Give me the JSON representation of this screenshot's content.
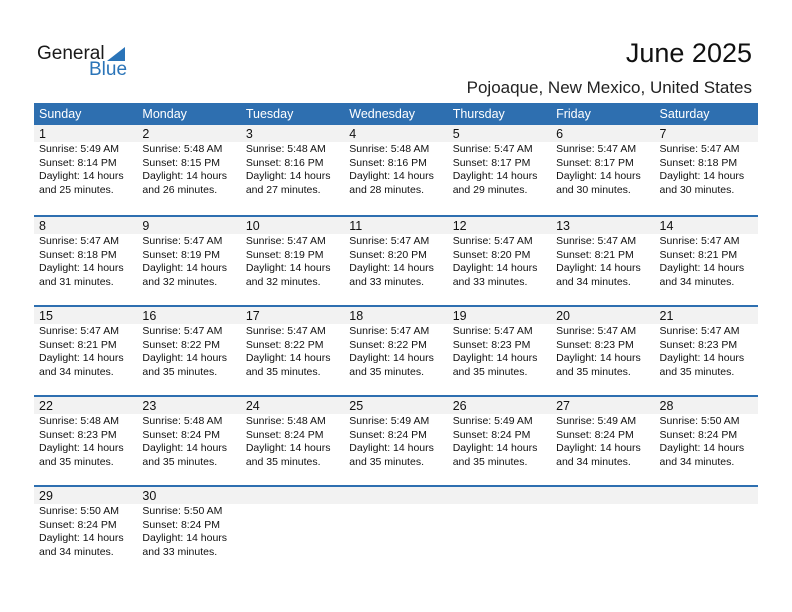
{
  "logo": {
    "line1": "General",
    "line2": "Blue"
  },
  "title": "June 2025",
  "location": "Pojoaque, New Mexico, United States",
  "weekdays": [
    "Sunday",
    "Monday",
    "Tuesday",
    "Wednesday",
    "Thursday",
    "Friday",
    "Saturday"
  ],
  "colors": {
    "header": "#2e6fb0",
    "date_row": "#f2f2f2",
    "brand": "#2a74b8"
  },
  "days": [
    {
      "day": "1",
      "sunrise": "Sunrise: 5:49 AM",
      "sunset": "Sunset: 8:14 PM",
      "daylight": "Daylight: 14 hours",
      "minutes": "and 25 minutes."
    },
    {
      "day": "2",
      "sunrise": "Sunrise: 5:48 AM",
      "sunset": "Sunset: 8:15 PM",
      "daylight": "Daylight: 14 hours",
      "minutes": "and 26 minutes."
    },
    {
      "day": "3",
      "sunrise": "Sunrise: 5:48 AM",
      "sunset": "Sunset: 8:16 PM",
      "daylight": "Daylight: 14 hours",
      "minutes": "and 27 minutes."
    },
    {
      "day": "4",
      "sunrise": "Sunrise: 5:48 AM",
      "sunset": "Sunset: 8:16 PM",
      "daylight": "Daylight: 14 hours",
      "minutes": "and 28 minutes."
    },
    {
      "day": "5",
      "sunrise": "Sunrise: 5:47 AM",
      "sunset": "Sunset: 8:17 PM",
      "daylight": "Daylight: 14 hours",
      "minutes": "and 29 minutes."
    },
    {
      "day": "6",
      "sunrise": "Sunrise: 5:47 AM",
      "sunset": "Sunset: 8:17 PM",
      "daylight": "Daylight: 14 hours",
      "minutes": "and 30 minutes."
    },
    {
      "day": "7",
      "sunrise": "Sunrise: 5:47 AM",
      "sunset": "Sunset: 8:18 PM",
      "daylight": "Daylight: 14 hours",
      "minutes": "and 30 minutes."
    },
    {
      "day": "8",
      "sunrise": "Sunrise: 5:47 AM",
      "sunset": "Sunset: 8:18 PM",
      "daylight": "Daylight: 14 hours",
      "minutes": "and 31 minutes."
    },
    {
      "day": "9",
      "sunrise": "Sunrise: 5:47 AM",
      "sunset": "Sunset: 8:19 PM",
      "daylight": "Daylight: 14 hours",
      "minutes": "and 32 minutes."
    },
    {
      "day": "10",
      "sunrise": "Sunrise: 5:47 AM",
      "sunset": "Sunset: 8:19 PM",
      "daylight": "Daylight: 14 hours",
      "minutes": "and 32 minutes."
    },
    {
      "day": "11",
      "sunrise": "Sunrise: 5:47 AM",
      "sunset": "Sunset: 8:20 PM",
      "daylight": "Daylight: 14 hours",
      "minutes": "and 33 minutes."
    },
    {
      "day": "12",
      "sunrise": "Sunrise: 5:47 AM",
      "sunset": "Sunset: 8:20 PM",
      "daylight": "Daylight: 14 hours",
      "minutes": "and 33 minutes."
    },
    {
      "day": "13",
      "sunrise": "Sunrise: 5:47 AM",
      "sunset": "Sunset: 8:21 PM",
      "daylight": "Daylight: 14 hours",
      "minutes": "and 34 minutes."
    },
    {
      "day": "14",
      "sunrise": "Sunrise: 5:47 AM",
      "sunset": "Sunset: 8:21 PM",
      "daylight": "Daylight: 14 hours",
      "minutes": "and 34 minutes."
    },
    {
      "day": "15",
      "sunrise": "Sunrise: 5:47 AM",
      "sunset": "Sunset: 8:21 PM",
      "daylight": "Daylight: 14 hours",
      "minutes": "and 34 minutes."
    },
    {
      "day": "16",
      "sunrise": "Sunrise: 5:47 AM",
      "sunset": "Sunset: 8:22 PM",
      "daylight": "Daylight: 14 hours",
      "minutes": "and 35 minutes."
    },
    {
      "day": "17",
      "sunrise": "Sunrise: 5:47 AM",
      "sunset": "Sunset: 8:22 PM",
      "daylight": "Daylight: 14 hours",
      "minutes": "and 35 minutes."
    },
    {
      "day": "18",
      "sunrise": "Sunrise: 5:47 AM",
      "sunset": "Sunset: 8:22 PM",
      "daylight": "Daylight: 14 hours",
      "minutes": "and 35 minutes."
    },
    {
      "day": "19",
      "sunrise": "Sunrise: 5:47 AM",
      "sunset": "Sunset: 8:23 PM",
      "daylight": "Daylight: 14 hours",
      "minutes": "and 35 minutes."
    },
    {
      "day": "20",
      "sunrise": "Sunrise: 5:47 AM",
      "sunset": "Sunset: 8:23 PM",
      "daylight": "Daylight: 14 hours",
      "minutes": "and 35 minutes."
    },
    {
      "day": "21",
      "sunrise": "Sunrise: 5:47 AM",
      "sunset": "Sunset: 8:23 PM",
      "daylight": "Daylight: 14 hours",
      "minutes": "and 35 minutes."
    },
    {
      "day": "22",
      "sunrise": "Sunrise: 5:48 AM",
      "sunset": "Sunset: 8:23 PM",
      "daylight": "Daylight: 14 hours",
      "minutes": "and 35 minutes."
    },
    {
      "day": "23",
      "sunrise": "Sunrise: 5:48 AM",
      "sunset": "Sunset: 8:24 PM",
      "daylight": "Daylight: 14 hours",
      "minutes": "and 35 minutes."
    },
    {
      "day": "24",
      "sunrise": "Sunrise: 5:48 AM",
      "sunset": "Sunset: 8:24 PM",
      "daylight": "Daylight: 14 hours",
      "minutes": "and 35 minutes."
    },
    {
      "day": "25",
      "sunrise": "Sunrise: 5:49 AM",
      "sunset": "Sunset: 8:24 PM",
      "daylight": "Daylight: 14 hours",
      "minutes": "and 35 minutes."
    },
    {
      "day": "26",
      "sunrise": "Sunrise: 5:49 AM",
      "sunset": "Sunset: 8:24 PM",
      "daylight": "Daylight: 14 hours",
      "minutes": "and 35 minutes."
    },
    {
      "day": "27",
      "sunrise": "Sunrise: 5:49 AM",
      "sunset": "Sunset: 8:24 PM",
      "daylight": "Daylight: 14 hours",
      "minutes": "and 34 minutes."
    },
    {
      "day": "28",
      "sunrise": "Sunrise: 5:50 AM",
      "sunset": "Sunset: 8:24 PM",
      "daylight": "Daylight: 14 hours",
      "minutes": "and 34 minutes."
    },
    {
      "day": "29",
      "sunrise": "Sunrise: 5:50 AM",
      "sunset": "Sunset: 8:24 PM",
      "daylight": "Daylight: 14 hours",
      "minutes": "and 34 minutes."
    },
    {
      "day": "30",
      "sunrise": "Sunrise: 5:50 AM",
      "sunset": "Sunset: 8:24 PM",
      "daylight": "Daylight: 14 hours",
      "minutes": "and 33 minutes."
    }
  ]
}
